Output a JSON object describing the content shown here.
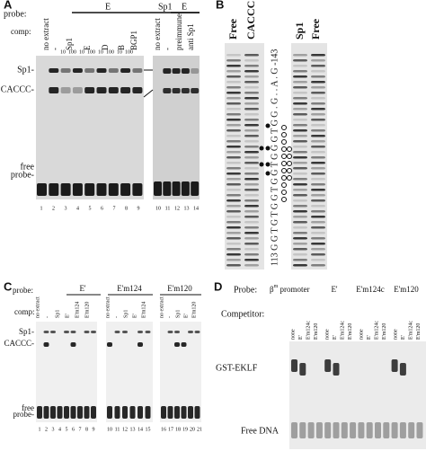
{
  "panel_a": {
    "label": "A",
    "probe_label": "probe:",
    "probe_left": "E",
    "probe_sp1": "Sp1",
    "probe_right": "E",
    "comp_label": "comp:",
    "lanes_left": [
      "no extract",
      "-",
      "Sp1",
      "E",
      "D",
      "B",
      "BGP1"
    ],
    "concentrations": [
      "10",
      "100",
      "10",
      "100",
      "10",
      "100",
      "10",
      "100"
    ],
    "lanes_right": [
      "no extract",
      "-",
      "preimmune",
      "anti Sp1"
    ],
    "band_labels": [
      "Sp1-",
      "CACCC-",
      "free",
      "probe-"
    ],
    "lane_numbers": [
      "1",
      "2",
      "3",
      "4",
      "5",
      "6",
      "7",
      "8",
      "9",
      "10",
      "11",
      "12",
      "13",
      "14"
    ]
  },
  "panel_b": {
    "label": "B",
    "headers": [
      "Free",
      "CACCC",
      "Sp1",
      "Free"
    ],
    "sequence": "113 G G T G T G G T G G T G G G T G G . G . . A . G -143"
  },
  "panel_c": {
    "label": "C",
    "probe_label": "probe:",
    "probes": [
      "E'",
      "E'm124",
      "E'm120"
    ],
    "comp_label": "comp:",
    "lanes": [
      [
        "no extract",
        "-",
        "Sp1",
        "E'",
        "E'm124",
        "E'm120"
      ],
      [
        "no extract",
        "-",
        "Sp1",
        "E'",
        "E'm124"
      ],
      [
        "no extract",
        "-",
        "Sp1",
        "E'",
        "E'm120"
      ]
    ],
    "band_labels": [
      "Sp1-",
      "CACCC-",
      "free",
      "probe-"
    ],
    "lane_numbers": [
      "1",
      "2",
      "3",
      "4",
      "5",
      "6",
      "7",
      "8",
      "9",
      "10",
      "11",
      "12",
      "13",
      "14",
      "15",
      "16",
      "17",
      "18",
      "19",
      "20",
      "21"
    ]
  },
  "panel_d": {
    "label": "D",
    "probe_label": "Probe:",
    "probe_beta": {
      "base": "β",
      "sup": "m",
      "rest": " promoter"
    },
    "probes": [
      "E'",
      "E'm124c",
      "E'm120"
    ],
    "competitor_label": "Competitor:",
    "competitors": [
      [
        "none",
        "E'",
        "E'm124c",
        "E'm120"
      ],
      [
        "none",
        "E'",
        "E'm124c",
        "E'm120"
      ],
      [
        "none",
        "E'",
        "E'm124c",
        "E'm120"
      ],
      [
        "none",
        "E'",
        "E'm124c",
        "E'm120"
      ]
    ],
    "band_labels": [
      "GST-EKLF",
      "Free DNA"
    ]
  }
}
